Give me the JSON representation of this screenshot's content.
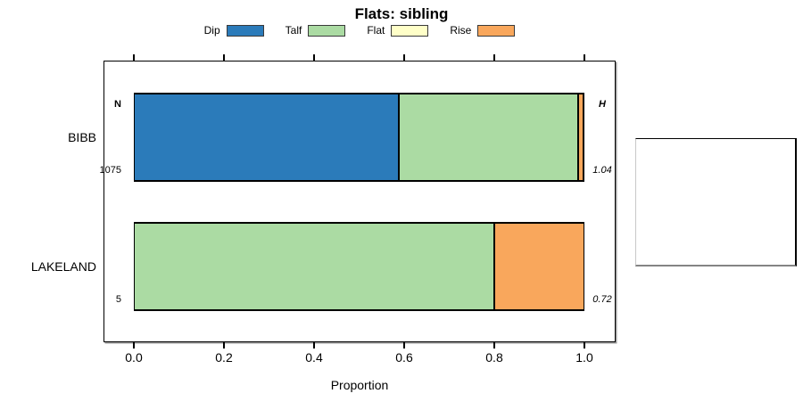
{
  "chart_data": {
    "type": "bar",
    "orientation": "horizontal-stacked",
    "title": "Flats: sibling",
    "xlabel": "Proportion",
    "xlim": [
      0.0,
      1.0
    ],
    "x_ticks": [
      0.0,
      0.2,
      0.4,
      0.6,
      0.8,
      1.0
    ],
    "x_tick_labels": [
      "0.0",
      "0.2",
      "0.4",
      "0.6",
      "0.8",
      "1.0"
    ],
    "grid": false,
    "legend_position": "top-center",
    "legend": [
      {
        "label": "Dip",
        "color": "#2B7BBA"
      },
      {
        "label": "Talf",
        "color": "#ABDBA3"
      },
      {
        "label": "Flat",
        "color": "#FFFFC8"
      },
      {
        "label": "Rise",
        "color": "#F9A75C"
      }
    ],
    "categories": [
      "BIBB",
      "LAKELAND"
    ],
    "series": [
      {
        "name": "Dip",
        "values": [
          0.59,
          0.0
        ]
      },
      {
        "name": "Talf",
        "values": [
          0.398,
          0.8
        ]
      },
      {
        "name": "Flat",
        "values": [
          0.0,
          0.0
        ]
      },
      {
        "name": "Rise",
        "values": [
          0.012,
          0.2
        ]
      }
    ],
    "n_column": {
      "header": "N",
      "values": [
        "1075",
        "5"
      ]
    },
    "h_column": {
      "header": "H",
      "values": [
        "1.04",
        "0.72"
      ]
    }
  }
}
